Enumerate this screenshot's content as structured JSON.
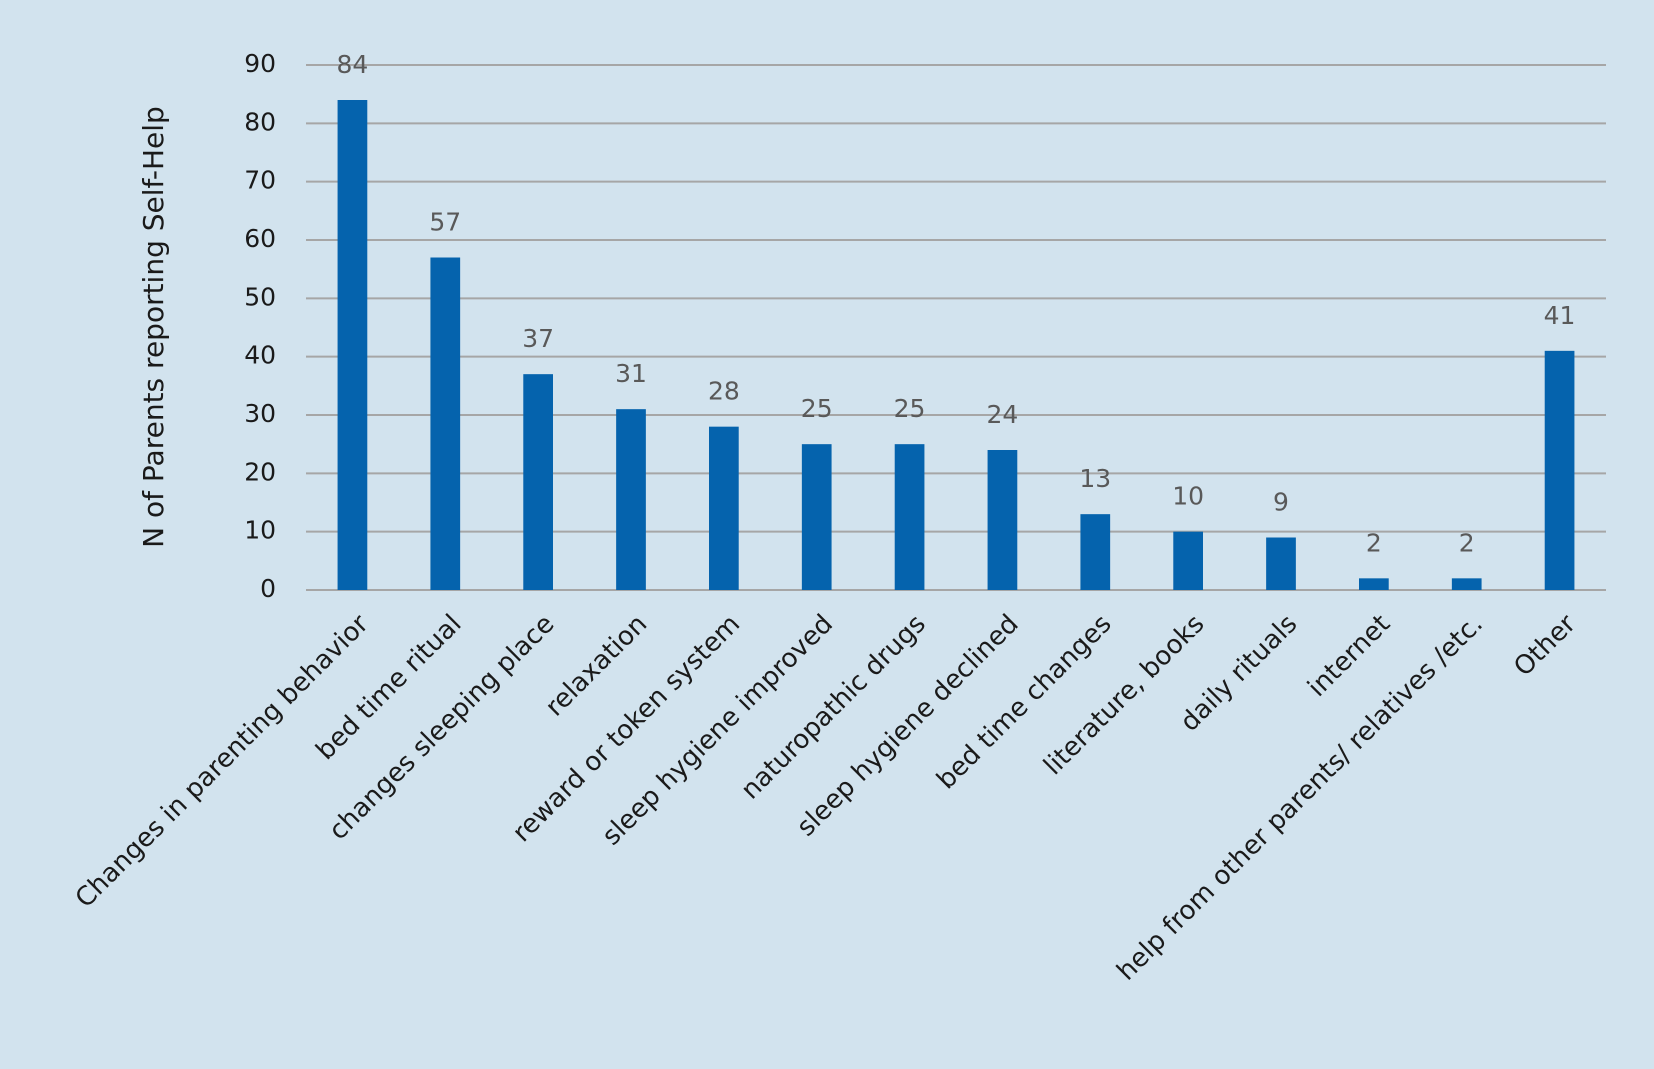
{
  "chart_data": {
    "type": "bar",
    "ylabel": "N of Parents reporting Self-Help",
    "categories": [
      "Changes in parenting behavior",
      "bed time ritual",
      "changes sleeping place",
      "relaxation",
      "reward or token system",
      "sleep hygiene improved",
      "naturopathic drugs",
      "sleep hygiene declined",
      "bed time changes",
      "literature, books",
      "daily rituals",
      "internet",
      "help from other parents/ relatives /etc.",
      "Other"
    ],
    "values": [
      84,
      57,
      37,
      31,
      28,
      25,
      25,
      24,
      13,
      10,
      9,
      2,
      2,
      41
    ],
    "color": "#0563ad",
    "ylim": [
      0,
      90
    ],
    "yticks": [
      0,
      10,
      20,
      30,
      40,
      50,
      60,
      70,
      80,
      90
    ],
    "grid": true
  }
}
